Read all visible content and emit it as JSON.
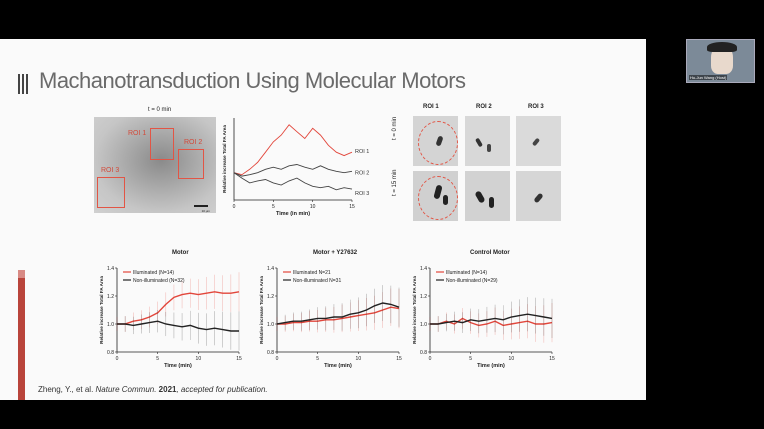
{
  "slide": {
    "title": "Machanotransduction Using Molecular Motors",
    "citation_author": "Zheng, Y., et al. ",
    "citation_journal": "Nature Commun. ",
    "citation_year": "2021",
    "citation_tail": ", accepted for publication."
  },
  "webcam": {
    "name": "Hu-Jun Wang (Host)"
  },
  "cell_image": {
    "time_label": "t = 0 min",
    "rois": [
      "ROI 1",
      "ROI 2",
      "ROI 3"
    ],
    "scale_label": "10 μm"
  },
  "roi_grid": {
    "col_headers": [
      "ROI 1",
      "ROI 2",
      "ROI 3"
    ],
    "row_labels": [
      "t = 0 min",
      "t = 15 min"
    ]
  },
  "colors": {
    "illuminated": "#e2463b",
    "non_illuminated": "#222222",
    "roi": "#e25545"
  },
  "chart_data": [
    {
      "type": "line",
      "title": "",
      "xlabel": "Time (in min)",
      "ylabel": "Relative increase Total FA Area",
      "xlim": [
        0,
        15
      ],
      "ylim": [
        0.6,
        1.8
      ],
      "xticks": [
        0,
        5,
        10,
        15
      ],
      "yticks": [],
      "series": [
        {
          "name": "ROI 1",
          "color": "#e2463b",
          "x": [
            0,
            1,
            2,
            3,
            4,
            5,
            6,
            7,
            8,
            9,
            10,
            11,
            12,
            13,
            14,
            15
          ],
          "y": [
            1.0,
            0.97,
            1.05,
            1.15,
            1.3,
            1.45,
            1.55,
            1.7,
            1.6,
            1.5,
            1.65,
            1.55,
            1.4,
            1.3,
            1.25,
            1.3
          ]
        },
        {
          "name": "ROI 2",
          "color": "#444444",
          "x": [
            0,
            1,
            2,
            3,
            4,
            5,
            6,
            7,
            8,
            9,
            10,
            11,
            12,
            13,
            14,
            15
          ],
          "y": [
            1.0,
            0.95,
            0.97,
            1.0,
            1.05,
            1.08,
            1.05,
            1.1,
            1.12,
            1.08,
            1.05,
            1.1,
            1.05,
            1.02,
            1.0,
            1.02
          ]
        },
        {
          "name": "ROI 3",
          "color": "#444444",
          "x": [
            0,
            1,
            2,
            3,
            4,
            5,
            6,
            7,
            8,
            9,
            10,
            11,
            12,
            13,
            14,
            15
          ],
          "y": [
            1.0,
            0.92,
            0.85,
            0.88,
            0.9,
            0.85,
            0.82,
            0.88,
            0.92,
            0.85,
            0.8,
            0.78,
            0.8,
            0.75,
            0.78,
            0.76
          ]
        }
      ]
    },
    {
      "type": "line",
      "title": "Motor",
      "xlabel": "Time (min)",
      "ylabel": "Relative increase Total FA Area",
      "xlim": [
        0,
        15
      ],
      "ylim": [
        0.8,
        1.4
      ],
      "xticks": [
        0,
        5,
        10,
        15
      ],
      "yticks": [
        0.8,
        1.0,
        1.2,
        1.4
      ],
      "series": [
        {
          "name": "Illuminated (N=14)",
          "color": "#e2463b",
          "x": [
            0,
            1,
            2,
            3,
            4,
            5,
            6,
            7,
            8,
            9,
            10,
            11,
            12,
            13,
            14,
            15
          ],
          "y": [
            1.0,
            1.0,
            1.02,
            1.03,
            1.05,
            1.08,
            1.14,
            1.19,
            1.21,
            1.22,
            1.21,
            1.22,
            1.23,
            1.22,
            1.22,
            1.23
          ]
        },
        {
          "name": "Non-illuminated (N=32)",
          "color": "#222222",
          "x": [
            0,
            1,
            2,
            3,
            4,
            5,
            6,
            7,
            8,
            9,
            10,
            11,
            12,
            13,
            14,
            15
          ],
          "y": [
            1.0,
            1.0,
            0.99,
            1.0,
            1.01,
            1.02,
            1.0,
            0.99,
            0.98,
            0.99,
            0.97,
            0.96,
            0.97,
            0.96,
            0.95,
            0.95
          ]
        }
      ]
    },
    {
      "type": "line",
      "title": "Motor + Y27632",
      "xlabel": "Time (min)",
      "ylabel": "Relative increase Total FA Area",
      "xlim": [
        0,
        15
      ],
      "ylim": [
        0.8,
        1.4
      ],
      "xticks": [
        0,
        5,
        10,
        15
      ],
      "yticks": [
        0.8,
        1.0,
        1.2,
        1.4
      ],
      "series": [
        {
          "name": "Illuminated N=21",
          "color": "#e2463b",
          "x": [
            0,
            1,
            2,
            3,
            4,
            5,
            6,
            7,
            8,
            9,
            10,
            11,
            12,
            13,
            14,
            15
          ],
          "y": [
            1.0,
            1.0,
            1.01,
            1.01,
            1.02,
            1.02,
            1.03,
            1.03,
            1.04,
            1.05,
            1.06,
            1.07,
            1.08,
            1.1,
            1.12,
            1.11
          ]
        },
        {
          "name": "Non-illuminated N=31",
          "color": "#222222",
          "x": [
            0,
            1,
            2,
            3,
            4,
            5,
            6,
            7,
            8,
            9,
            10,
            11,
            12,
            13,
            14,
            15
          ],
          "y": [
            1.0,
            1.01,
            1.02,
            1.02,
            1.03,
            1.04,
            1.04,
            1.05,
            1.05,
            1.07,
            1.08,
            1.1,
            1.13,
            1.15,
            1.14,
            1.12
          ]
        }
      ]
    },
    {
      "type": "line",
      "title": "Control Motor",
      "xlabel": "Time (min)",
      "ylabel": "Relative increase Total FA Area",
      "xlim": [
        0,
        15
      ],
      "ylim": [
        0.8,
        1.4
      ],
      "xticks": [
        0,
        5,
        10,
        15
      ],
      "yticks": [
        0.8,
        1.0,
        1.2,
        1.4
      ],
      "series": [
        {
          "name": "Illuminated (N=14)",
          "color": "#e2463b",
          "x": [
            0,
            1,
            2,
            3,
            4,
            5,
            6,
            7,
            8,
            9,
            10,
            11,
            12,
            13,
            14,
            15
          ],
          "y": [
            1.0,
            1.0,
            1.02,
            1.0,
            1.04,
            1.01,
            0.99,
            1.0,
            1.02,
            0.99,
            1.0,
            1.01,
            1.02,
            1.0,
            1.0,
            1.01
          ]
        },
        {
          "name": "Non-illuminated (N=29)",
          "color": "#222222",
          "x": [
            0,
            1,
            2,
            3,
            4,
            5,
            6,
            7,
            8,
            9,
            10,
            11,
            12,
            13,
            14,
            15
          ],
          "y": [
            1.0,
            1.0,
            1.01,
            1.02,
            1.01,
            1.03,
            1.02,
            1.03,
            1.04,
            1.03,
            1.05,
            1.06,
            1.07,
            1.06,
            1.05,
            1.04
          ]
        }
      ]
    }
  ]
}
